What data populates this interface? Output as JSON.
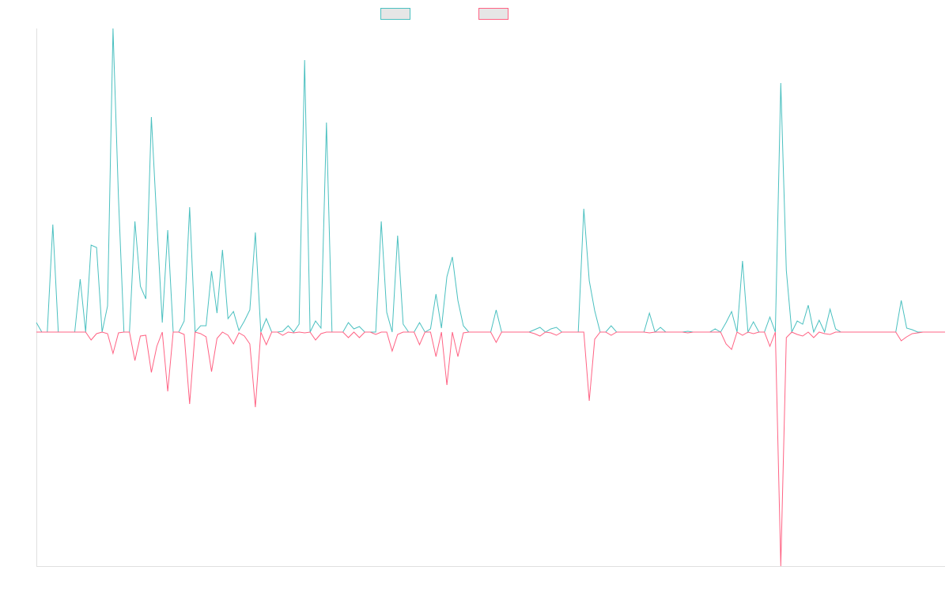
{
  "chart_data": {
    "type": "line",
    "title": "",
    "xlabel": "",
    "ylabel": "",
    "n_points": 167,
    "ylim": [
      -296,
      384
    ],
    "grid": false,
    "legend_placement": "top-center",
    "series": [
      {
        "name": "",
        "color": "#4bc0c0",
        "sparse_values": [
          [
            0,
            12
          ],
          [
            3,
            136
          ],
          [
            8,
            67
          ],
          [
            10,
            110
          ],
          [
            11,
            107
          ],
          [
            13,
            33
          ],
          [
            14,
            384
          ],
          [
            15,
            170
          ],
          [
            18,
            140
          ],
          [
            19,
            58
          ],
          [
            20,
            42
          ],
          [
            21,
            272
          ],
          [
            22,
            140
          ],
          [
            23,
            12
          ],
          [
            24,
            129
          ],
          [
            27,
            14
          ],
          [
            28,
            158
          ],
          [
            30,
            8
          ],
          [
            31,
            8
          ],
          [
            32,
            77
          ],
          [
            33,
            24
          ],
          [
            34,
            104
          ],
          [
            35,
            17
          ],
          [
            36,
            26
          ],
          [
            37,
            2
          ],
          [
            38,
            14
          ],
          [
            39,
            28
          ],
          [
            40,
            126
          ],
          [
            42,
            17
          ],
          [
            45,
            1
          ],
          [
            46,
            8
          ],
          [
            48,
            10
          ],
          [
            49,
            344
          ],
          [
            51,
            14
          ],
          [
            52,
            5
          ],
          [
            53,
            265
          ],
          [
            57,
            12
          ],
          [
            58,
            4
          ],
          [
            59,
            7
          ],
          [
            63,
            140
          ],
          [
            64,
            25
          ],
          [
            66,
            122
          ],
          [
            67,
            10
          ],
          [
            70,
            12
          ],
          [
            72,
            4
          ],
          [
            73,
            48
          ],
          [
            74,
            5
          ],
          [
            75,
            70
          ],
          [
            76,
            95
          ],
          [
            77,
            40
          ],
          [
            78,
            8
          ],
          [
            84,
            28
          ],
          [
            91,
            3
          ],
          [
            92,
            6
          ],
          [
            94,
            4
          ],
          [
            95,
            6
          ],
          [
            100,
            156
          ],
          [
            101,
            65
          ],
          [
            102,
            27
          ],
          [
            105,
            8
          ],
          [
            112,
            24
          ],
          [
            114,
            6
          ],
          [
            119,
            1
          ],
          [
            124,
            4
          ],
          [
            126,
            12
          ],
          [
            127,
            26
          ],
          [
            129,
            90
          ],
          [
            131,
            13
          ],
          [
            134,
            19
          ],
          [
            136,
            315
          ],
          [
            137,
            78
          ],
          [
            139,
            14
          ],
          [
            140,
            10
          ],
          [
            141,
            34
          ],
          [
            143,
            15
          ],
          [
            145,
            29
          ],
          [
            146,
            4
          ],
          [
            158,
            40
          ],
          [
            159,
            5
          ],
          [
            160,
            3
          ]
        ]
      },
      {
        "name": "",
        "color": "#ff6384",
        "sparse_values": [
          [
            10,
            -10
          ],
          [
            11,
            -2
          ],
          [
            13,
            -2
          ],
          [
            14,
            -27
          ],
          [
            15,
            -1
          ],
          [
            18,
            -36
          ],
          [
            19,
            -5
          ],
          [
            20,
            -4
          ],
          [
            21,
            -51
          ],
          [
            22,
            -18
          ],
          [
            24,
            -75
          ],
          [
            27,
            -3
          ],
          [
            28,
            -91
          ],
          [
            30,
            -2
          ],
          [
            31,
            -6
          ],
          [
            32,
            -50
          ],
          [
            33,
            -8
          ],
          [
            35,
            -4
          ],
          [
            36,
            -15
          ],
          [
            37,
            -1
          ],
          [
            38,
            -5
          ],
          [
            39,
            -15
          ],
          [
            40,
            -95
          ],
          [
            42,
            -16
          ],
          [
            45,
            -4
          ],
          [
            47,
            -1
          ],
          [
            49,
            -1
          ],
          [
            51,
            -10
          ],
          [
            52,
            -2
          ],
          [
            57,
            -7
          ],
          [
            59,
            -7
          ],
          [
            62,
            -3
          ],
          [
            65,
            -24
          ],
          [
            66,
            -3
          ],
          [
            70,
            -16
          ],
          [
            73,
            -31
          ],
          [
            75,
            -67
          ],
          [
            77,
            -31
          ],
          [
            78,
            -1
          ],
          [
            84,
            -13
          ],
          [
            91,
            -2
          ],
          [
            92,
            -5
          ],
          [
            94,
            -1
          ],
          [
            95,
            -4
          ],
          [
            101,
            -87
          ],
          [
            102,
            -9
          ],
          [
            105,
            -4
          ],
          [
            112,
            -1
          ],
          [
            119,
            -1
          ],
          [
            126,
            -15
          ],
          [
            127,
            -22
          ],
          [
            129,
            -4
          ],
          [
            131,
            -2
          ],
          [
            134,
            -18
          ],
          [
            136,
            -296
          ],
          [
            137,
            -7
          ],
          [
            139,
            -3
          ],
          [
            140,
            -5
          ],
          [
            142,
            -7
          ],
          [
            144,
            -2
          ],
          [
            145,
            -3
          ],
          [
            158,
            -11
          ],
          [
            159,
            -6
          ],
          [
            160,
            -2
          ],
          [
            161,
            -1
          ]
        ]
      }
    ]
  }
}
